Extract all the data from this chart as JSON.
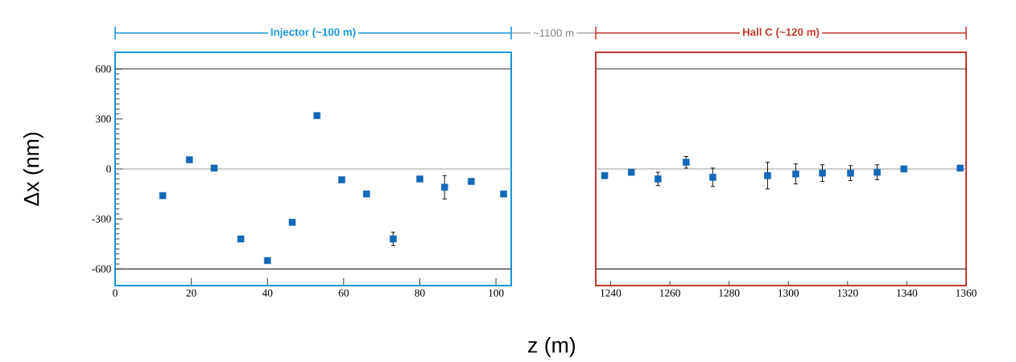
{
  "chart_data": [
    {
      "type": "scatter",
      "ylabel": "Δx (nm)",
      "xlabel": "z (m)",
      "annotations": [
        "Injector (~100 m)",
        "~1100 m"
      ],
      "marker": "square",
      "xlim": [
        0,
        104
      ],
      "xticks": [
        0,
        20,
        40,
        60,
        80,
        100
      ],
      "ylim": [
        -700,
        700
      ],
      "yticks": [
        -600,
        -300,
        0,
        300,
        600
      ],
      "ref_lines": [
        {
          "axis": "y",
          "value": 600,
          "color": "#333333"
        },
        {
          "axis": "y",
          "value": 0,
          "color": "#999999"
        },
        {
          "axis": "y",
          "value": -600,
          "color": "#333333"
        }
      ],
      "x": [
        12.5,
        19.5,
        26,
        33,
        40,
        46.5,
        53,
        59.5,
        66,
        73,
        80,
        86.5,
        93.5,
        102
      ],
      "series": [
        {
          "color": "#1467b8",
          "values": [
            -160,
            55,
            5,
            -420,
            -550,
            -320,
            320,
            -65,
            -150,
            -420,
            -60,
            -110,
            -75,
            -150
          ],
          "errors": [
            null,
            null,
            null,
            null,
            null,
            null,
            null,
            null,
            null,
            40,
            null,
            70,
            null,
            null
          ]
        }
      ]
    },
    {
      "type": "scatter",
      "annotations": [
        "Hall C (~120 m)"
      ],
      "marker": "square",
      "tick_labels": "x",
      "xlim": [
        1235,
        1360
      ],
      "xticks": [
        1240,
        1260,
        1280,
        1300,
        1320,
        1340,
        1360
      ],
      "ylim": [
        -700,
        700
      ],
      "ref_lines": [
        {
          "axis": "y",
          "value": 600,
          "color": "#333333"
        },
        {
          "axis": "y",
          "value": 0,
          "color": "#999999"
        },
        {
          "axis": "y",
          "value": -600,
          "color": "#333333"
        }
      ],
      "x": [
        1238,
        1247,
        1256,
        1265.5,
        1274.5,
        1293,
        1302.5,
        1311.5,
        1321,
        1330,
        1339,
        1358
      ],
      "series": [
        {
          "color": "#1467b8",
          "values": [
            -40,
            -20,
            -60,
            40,
            -50,
            -40,
            -30,
            -25,
            -25,
            -20,
            0,
            5
          ],
          "errors": [
            null,
            null,
            40,
            35,
            55,
            80,
            60,
            50,
            45,
            45,
            null,
            null
          ]
        }
      ]
    }
  ]
}
